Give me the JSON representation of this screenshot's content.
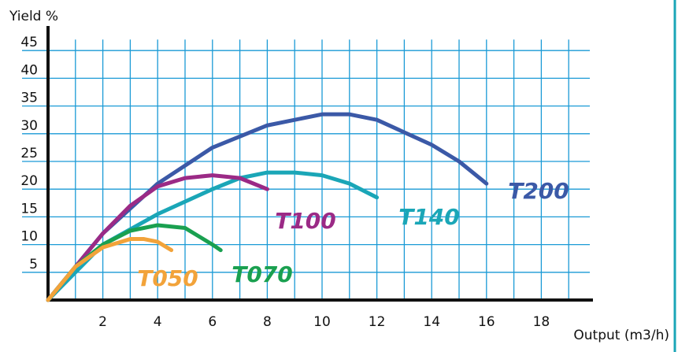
{
  "chart_data": {
    "type": "line",
    "y_label": "Yield %",
    "x_label": "Output (m3/h)",
    "xlim": [
      0,
      20
    ],
    "ylim": [
      0,
      50
    ],
    "xticks": [
      2,
      4,
      6,
      8,
      10,
      12,
      14,
      16,
      18
    ],
    "yticks": [
      5,
      10,
      15,
      20,
      25,
      30,
      35,
      40,
      45
    ],
    "xgrid": [
      1,
      2,
      3,
      4,
      5,
      6,
      7,
      8,
      9,
      10,
      11,
      12,
      13,
      14,
      15,
      16,
      17,
      18,
      19
    ],
    "grid": true,
    "grid_color": "#1a9ad6",
    "series": [
      {
        "name": "T200",
        "color": "#3b59a7",
        "x": [
          0,
          2,
          4,
          6,
          8,
          10,
          11,
          12,
          14,
          15,
          16
        ],
        "y": [
          0,
          12,
          21,
          27.5,
          31.5,
          33.5,
          33.5,
          32.5,
          28,
          25,
          21
        ]
      },
      {
        "name": "T140",
        "color": "#1aa6b7",
        "x": [
          0,
          2,
          4,
          6,
          7,
          8,
          9,
          10,
          11,
          12
        ],
        "y": [
          0,
          10,
          15.5,
          20,
          22,
          23,
          23,
          22.5,
          21,
          18.5
        ]
      },
      {
        "name": "T100",
        "color": "#9b2a86",
        "x": [
          0,
          2,
          3,
          4,
          5,
          6,
          7,
          8
        ],
        "y": [
          0,
          12,
          17,
          20.5,
          22,
          22.5,
          22,
          20
        ]
      },
      {
        "name": "T070",
        "color": "#1aa050",
        "x": [
          0,
          1,
          2,
          3,
          4,
          5,
          6,
          6.3
        ],
        "y": [
          0,
          6,
          10,
          12.5,
          13.5,
          13,
          10,
          9
        ]
      },
      {
        "name": "T050",
        "color": "#f2a33a",
        "x": [
          0,
          1,
          2,
          3,
          3.5,
          4,
          4.5
        ],
        "y": [
          0,
          6,
          9.5,
          11,
          11,
          10.5,
          9
        ]
      }
    ]
  }
}
